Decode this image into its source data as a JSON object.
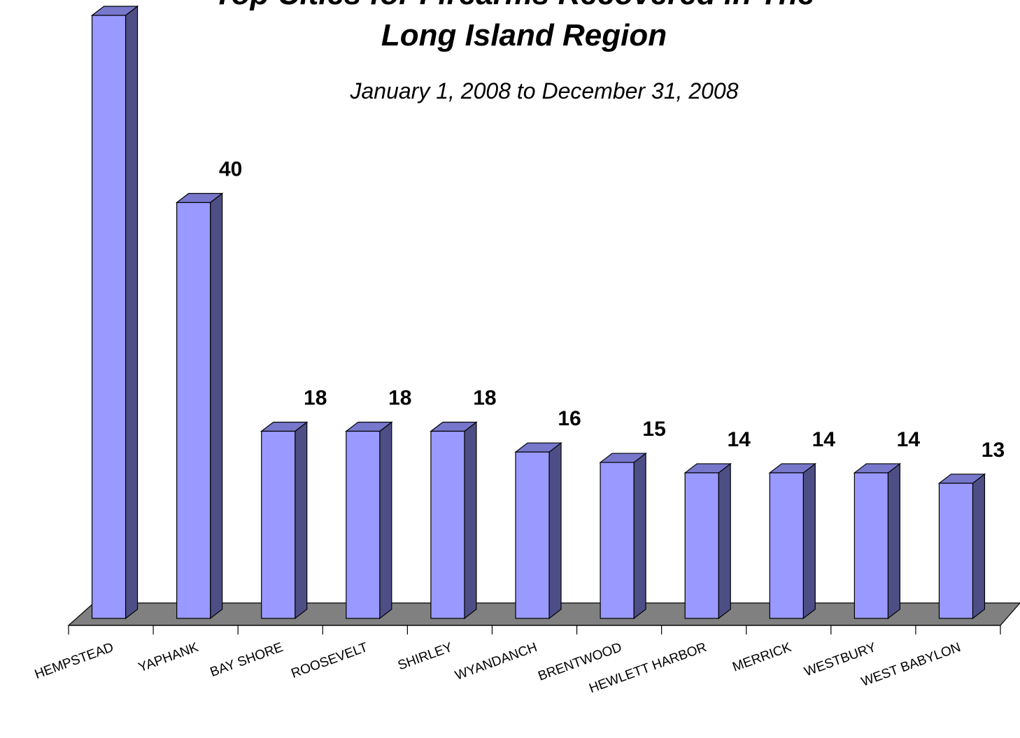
{
  "chart_data": {
    "type": "bar",
    "title_line1": "Top Cities for Firearms Recovered in The",
    "title_line2": "Long Island Region",
    "subtitle": "January 1, 2008 to December 31, 2008",
    "categories": [
      "HEMPSTEAD",
      "YAPHANK",
      "BAY SHORE",
      "ROOSEVELT",
      "SHIRLEY",
      "WYANDANCH",
      "BRENTWOOD",
      "HEWLETT HARBOR",
      "MERRICK",
      "WESTBURY",
      "WEST BABYLON"
    ],
    "values": [
      58,
      40,
      18,
      18,
      18,
      16,
      15,
      14,
      14,
      14,
      13
    ],
    "ylim": [
      0,
      58
    ],
    "grid": false,
    "legend": "none",
    "colors": {
      "bar_front": "#9999ff",
      "bar_side": "#4e4e86",
      "bar_top": "#7777cc",
      "floor": "#808080",
      "outline": "#000000"
    }
  }
}
